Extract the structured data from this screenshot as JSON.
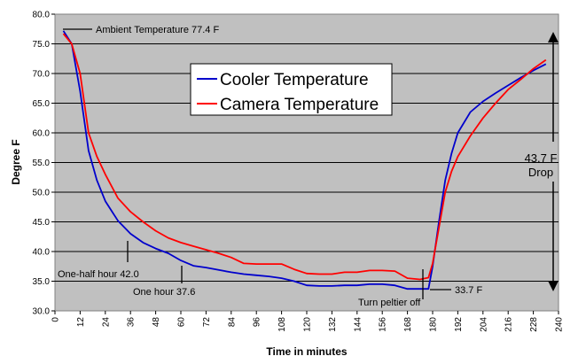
{
  "chart_data": {
    "type": "line",
    "xlabel": "Time in minutes",
    "ylabel": "Degree F",
    "xlim": [
      0,
      240
    ],
    "ylim": [
      30,
      80
    ],
    "x_ticks": [
      0,
      12,
      24,
      36,
      48,
      60,
      72,
      84,
      96,
      108,
      120,
      132,
      144,
      156,
      168,
      180,
      192,
      204,
      216,
      228,
      240
    ],
    "y_ticks": [
      30.0,
      35.0,
      40.0,
      45.0,
      50.0,
      55.0,
      60.0,
      65.0,
      70.0,
      75.0,
      80.0
    ],
    "grid": true,
    "legend": "top-center",
    "colors": {
      "plot_bg": "#c0c0c0",
      "cooler": "#0000cc",
      "camera": "#ff0000"
    },
    "series": [
      {
        "name": "Cooler Temperature",
        "color": "#0000cc",
        "x": [
          4,
          8,
          12,
          16,
          20,
          24,
          30,
          36,
          42,
          48,
          54,
          60,
          66,
          72,
          78,
          84,
          90,
          96,
          102,
          108,
          114,
          120,
          126,
          132,
          138,
          144,
          150,
          156,
          162,
          168,
          174,
          178,
          180,
          183,
          186,
          189,
          192,
          198,
          204,
          210,
          216,
          222,
          228,
          234
        ],
        "values": [
          77.2,
          75.0,
          67.0,
          57.0,
          52.0,
          48.5,
          45.2,
          43.0,
          41.5,
          40.5,
          39.7,
          38.5,
          37.6,
          37.3,
          36.9,
          36.5,
          36.2,
          36.0,
          35.8,
          35.5,
          35.0,
          34.3,
          34.2,
          34.2,
          34.3,
          34.3,
          34.5,
          34.5,
          34.3,
          33.7,
          33.7,
          33.7,
          37.5,
          45.0,
          52.0,
          56.5,
          60.0,
          63.5,
          65.3,
          66.7,
          68.0,
          69.3,
          70.5,
          71.6
        ]
      },
      {
        "name": "Camera Temperature",
        "color": "#ff0000",
        "x": [
          4,
          8,
          12,
          16,
          20,
          24,
          30,
          36,
          42,
          48,
          54,
          60,
          66,
          72,
          78,
          84,
          90,
          96,
          102,
          108,
          114,
          120,
          126,
          132,
          138,
          144,
          150,
          156,
          162,
          168,
          174,
          178,
          180,
          183,
          186,
          189,
          192,
          198,
          204,
          210,
          216,
          222,
          228,
          234
        ],
        "values": [
          76.7,
          75.0,
          70.0,
          60.0,
          56.0,
          53.0,
          49.0,
          46.7,
          45.0,
          43.5,
          42.3,
          41.5,
          40.9,
          40.3,
          39.7,
          39.0,
          38.0,
          37.9,
          37.9,
          37.9,
          37.0,
          36.3,
          36.2,
          36.2,
          36.5,
          36.5,
          36.8,
          36.8,
          36.7,
          35.5,
          35.3,
          35.6,
          38.0,
          44.0,
          50.0,
          53.5,
          56.0,
          59.5,
          62.5,
          65.0,
          67.3,
          69.0,
          70.8,
          72.3
        ]
      }
    ],
    "annotations": [
      {
        "text": "Ambient Temperature 77.4 F"
      },
      {
        "text": "One-half hour 42.0"
      },
      {
        "text": "One hour 37.6"
      },
      {
        "text": "Turn peltier off"
      },
      {
        "text": "33.7 F"
      },
      {
        "text": "43.7 F"
      },
      {
        "text": "Drop"
      }
    ]
  }
}
